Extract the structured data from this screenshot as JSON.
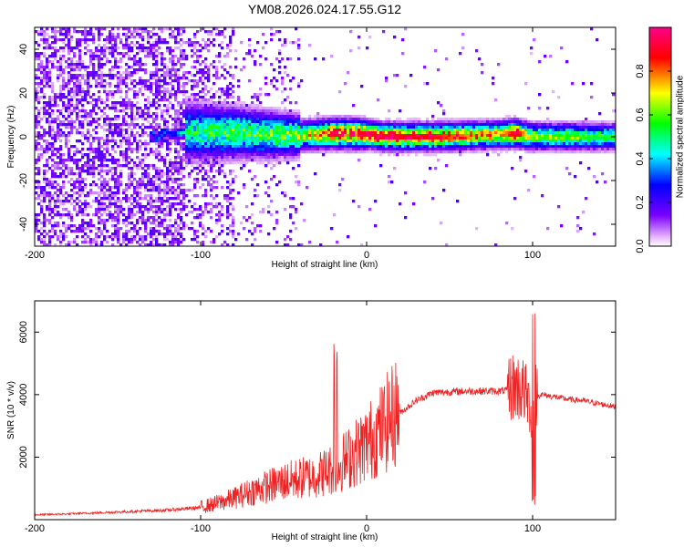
{
  "title": "YM08.2026.024.17.55.G12",
  "chart_data": [
    {
      "type": "heatmap",
      "xlabel": "Height of straight line (km)",
      "ylabel": "Frequency (Hz)",
      "xlim": [
        -200,
        150
      ],
      "ylim": [
        -50,
        50
      ],
      "xticks": [
        -200,
        -100,
        0,
        100
      ],
      "yticks": [
        -40,
        -20,
        0,
        20,
        40
      ],
      "colorbar": {
        "label": "Normalized spectral amplitude",
        "range": [
          0,
          1
        ],
        "ticks": [
          0.0,
          0.2,
          0.4,
          0.6,
          0.8
        ],
        "stops": [
          "#e8b8ff",
          "#7a00ff",
          "#0000ff",
          "#00ffff",
          "#00ff00",
          "#ffff00",
          "#ff0000",
          "#ff0080"
        ]
      },
      "ridge": {
        "description_points_x": [
          -200,
          -125,
          -110,
          -100,
          -80,
          -60,
          -40,
          -20,
          0,
          10,
          40,
          80,
          90,
          100,
          150
        ],
        "center_freq": [
          0,
          0,
          2,
          2,
          2,
          1,
          0.5,
          1.5,
          1,
          0,
          0,
          1,
          1.5,
          0,
          0
        ],
        "peak_amplitude": [
          0.15,
          0.2,
          0.45,
          0.5,
          0.55,
          0.55,
          0.6,
          0.85,
          0.9,
          0.9,
          0.85,
          0.7,
          0.9,
          0.6,
          0.5
        ]
      }
    },
    {
      "type": "line",
      "xlabel": "Height of straight line (km)",
      "ylabel": "SNR (10 * v/v)",
      "xlim": [
        -200,
        150
      ],
      "ylim": [
        0,
        7000
      ],
      "xticks": [
        -200,
        -100,
        0,
        100
      ],
      "yticks": [
        2000,
        4000,
        6000
      ],
      "series": [
        {
          "name": "SNR",
          "color": "#ee2222",
          "x": [
            -200,
            -180,
            -160,
            -140,
            -120,
            -100,
            -90,
            -80,
            -70,
            -60,
            -50,
            -40,
            -30,
            -20,
            -10,
            0,
            10,
            20,
            30,
            40,
            60,
            80,
            90,
            95,
            100,
            102,
            105,
            110,
            120,
            130,
            140,
            150
          ],
          "y": [
            150,
            180,
            220,
            260,
            300,
            380,
            500,
            650,
            850,
            1000,
            1150,
            1250,
            1350,
            1550,
            1900,
            2300,
            2800,
            3400,
            3800,
            4050,
            4100,
            4100,
            4150,
            4000,
            3300,
            3900,
            4000,
            3950,
            3850,
            3800,
            3700,
            3600
          ]
        }
      ]
    }
  ]
}
